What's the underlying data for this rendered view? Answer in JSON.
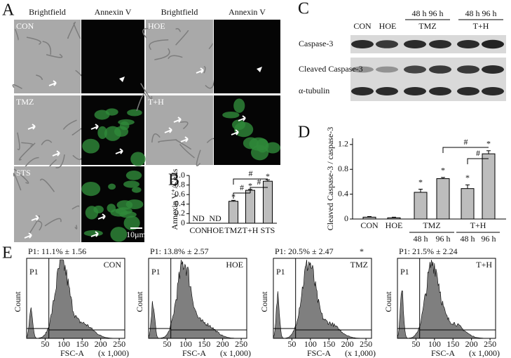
{
  "panel_labels": {
    "a": "A",
    "b": "B",
    "c": "C",
    "d": "D",
    "e": "E"
  },
  "panel_a": {
    "headers": [
      "Brightfield",
      "Annexin V",
      "Brightfield",
      "Annexin V"
    ],
    "conditions": [
      "CON",
      "HOE",
      "TMZ",
      "T+H",
      "STS"
    ],
    "scale_bar": "10μm"
  },
  "chart_data": [
    {
      "type": "bar",
      "ylabel": "Annexin V⁺/Cells",
      "categories": [
        "CON",
        "HOE",
        "TMZ",
        "T+H",
        "STS"
      ],
      "values": [
        null,
        null,
        0.46,
        0.69,
        0.88
      ],
      "value_labels": [
        "ND",
        "ND",
        null,
        null,
        null
      ],
      "errors": [
        null,
        null,
        0.02,
        0.02,
        0.03
      ],
      "color": "#bdbdbd",
      "ylim": [
        0,
        1
      ],
      "yticks": [
        0,
        0.2,
        0.4,
        0.6,
        0.8,
        {
          "value": 1,
          "label": "1.0"
        }
      ],
      "significance": "*",
      "comparison": "#"
    },
    {
      "type": "bar",
      "ylabel": "Cleaved Caspase-3 / caspase-3",
      "categories": [
        "CON",
        "HOE",
        "48 h",
        "96 h",
        "48 h",
        "96 h"
      ],
      "groups": [
        "TMZ",
        "T+H"
      ],
      "values": [
        0.03,
        0.02,
        0.43,
        0.65,
        0.49,
        1.05
      ],
      "errors": [
        0.01,
        0.01,
        0.05,
        0.02,
        0.06,
        0.05
      ],
      "color": "#bdbdbd",
      "ylim": [
        0,
        1.3
      ],
      "yticks": [
        0,
        0.4,
        0.8,
        1.2
      ],
      "significance": "*",
      "comparison": "#"
    }
  ],
  "panel_c": {
    "lanes": [
      "CON",
      "HOE"
    ],
    "timepoints": [
      "48 h 96 h",
      "48 h 96 h"
    ],
    "groups": [
      "TMZ",
      "T+H"
    ],
    "rows": [
      "Caspase-3",
      "Cleaved Caspase-3",
      "α-tubulin"
    ]
  },
  "panel_e": {
    "gate": "P1",
    "ylabel": "Count",
    "xlabel": "FSC-A",
    "xunit": "(x 1,000)",
    "xlim": [
      0,
      265
    ],
    "xticks": [
      50,
      100,
      150,
      200,
      250
    ],
    "plots": [
      {
        "stat": "P1: 11.1% ± 1.56",
        "condition": "CON"
      },
      {
        "stat": "P1: 13.8% ± 2.57",
        "condition": "HOE"
      },
      {
        "stat": "P1: 20.5% ± 2.47",
        "mark": "*",
        "condition": "TMZ"
      },
      {
        "stat": "P1: 21.5% ± 2.24",
        "condition": "T+H"
      }
    ]
  }
}
